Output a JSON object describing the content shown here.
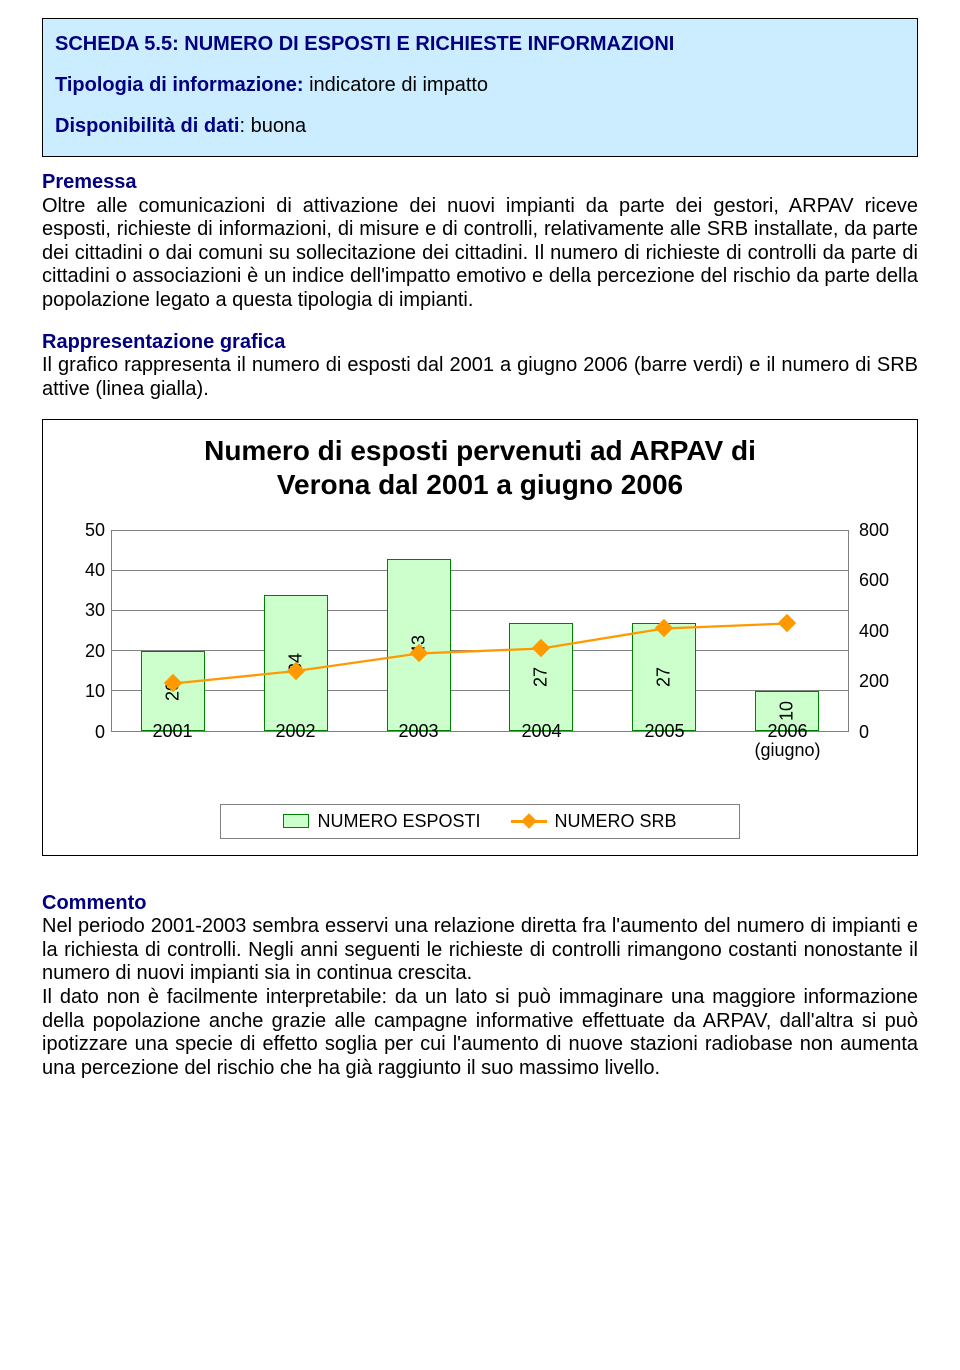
{
  "header": {
    "title": "SCHEDA 5.5: NUMERO DI ESPOSTI E RICHIESTE INFORMAZIONI",
    "tipologia_label": "Tipologia di informazione:",
    "tipologia_value": " indicatore di impatto",
    "disponibilita_label": "Disponibilità di dati",
    "disponibilita_value": ": buona"
  },
  "premessa": {
    "heading": "Premessa",
    "body": "Oltre alle comunicazioni di attivazione dei nuovi impianti da parte dei gestori, ARPAV riceve esposti, richieste di informazioni, di misure e di controlli, relativamente alle SRB installate, da parte dei cittadini o dai comuni su sollecitazione dei cittadini. Il numero di richieste di controlli da parte di cittadini o associazioni è un indice dell'impatto emotivo e della percezione del rischio da parte della popolazione legato a questa tipologia di impianti."
  },
  "rappresentazione": {
    "heading": "Rappresentazione grafica",
    "body": "Il grafico rappresenta il numero di esposti dal 2001 a giugno 2006 (barre verdi) e il numero di SRB attive (linea gialla)."
  },
  "chart": {
    "title_line1": "Numero di esposti pervenuti ad ARPAV di",
    "title_line2": "Verona dal 2001 a giugno 2006",
    "categories": [
      "2001",
      "2002",
      "2003",
      "2004",
      "2005",
      "2006\n(giugno)"
    ],
    "esposti_values": [
      20,
      34,
      43,
      27,
      27,
      10
    ],
    "srb_values": [
      190,
      240,
      310,
      330,
      410,
      430
    ],
    "left_axis": {
      "min": 0,
      "max": 50,
      "step": 10
    },
    "right_axis": {
      "min": 0,
      "max": 800,
      "step": 200
    },
    "bar_fill": "#ccffcc",
    "bar_border": "#008000",
    "line_color": "#ff9900",
    "grid_color": "#808080",
    "legend_esposti": "NUMERO ESPOSTI",
    "legend_srb": "NUMERO SRB"
  },
  "commento": {
    "heading": "Commento",
    "body": "Nel periodo 2001-2003 sembra esservi una  relazione diretta fra l'aumento del numero di impianti e la richiesta di controlli. Negli anni seguenti le richieste di controlli rimangono costanti nonostante il numero di nuovi impianti sia in continua crescita.\nIl dato non è facilmente interpretabile: da un lato si può immaginare una maggiore informazione della popolazione anche grazie alle campagne informative effettuate da ARPAV, dall'altra si può ipotizzare una specie di effetto soglia per cui l'aumento di nuove stazioni radiobase non aumenta una percezione del rischio che ha già raggiunto il suo massimo livello."
  }
}
